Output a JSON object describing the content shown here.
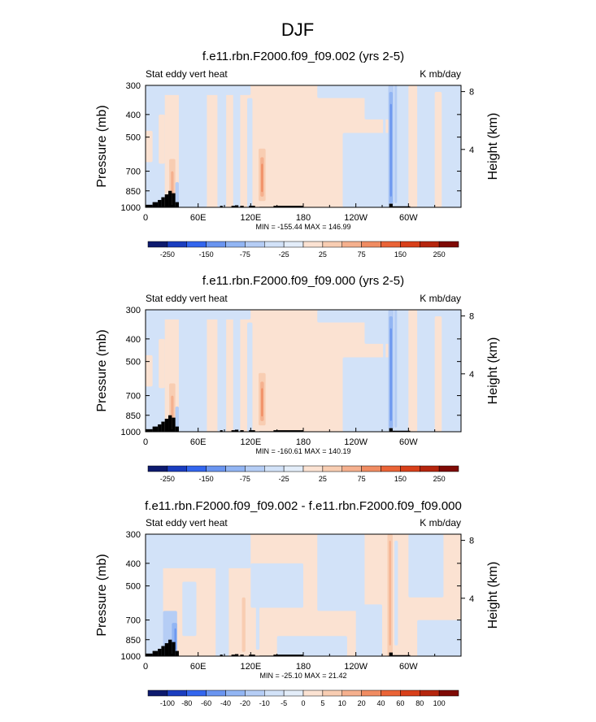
{
  "figure_title": "DJF",
  "chart_data": [
    {
      "type": "heatmap",
      "title": "f.e11.rbn.F2000.f09_f09.002 (yrs 2-5)",
      "left_label": "Stat eddy vert heat",
      "right_label": "K mb/day",
      "ylabel": "Pressure (mb)",
      "ylabel_right": "Height (km)",
      "yticks": [
        "300",
        "400",
        "500",
        "700",
        "850",
        "1000"
      ],
      "yticks_right": [
        "8",
        "4"
      ],
      "xticks": [
        "0",
        "60E",
        "120E",
        "180",
        "120W",
        "60W"
      ],
      "stats": "MIN = -155.44   MAX = 146.99",
      "colorbar_labels": [
        "-250",
        "-150",
        "-75",
        "-25",
        "25",
        "75",
        "150",
        "250"
      ],
      "colorbar_colors": [
        "#0d1a6e",
        "#1a3dbf",
        "#3366ee",
        "#6a95f0",
        "#92b5f3",
        "#b5cdf5",
        "#d2e2f8",
        "#e3edf9",
        "#fbe2d2",
        "#f8cdb2",
        "#f5b08e",
        "#f08c62",
        "#ea6437",
        "#d8401a",
        "#b5250d",
        "#7f0a05"
      ]
    },
    {
      "type": "heatmap",
      "title": "f.e11.rbn.F2000.f09_f09.000 (yrs 2-5)",
      "left_label": "Stat eddy vert heat",
      "right_label": "K mb/day",
      "ylabel": "Pressure (mb)",
      "ylabel_right": "Height (km)",
      "yticks": [
        "300",
        "400",
        "500",
        "700",
        "850",
        "1000"
      ],
      "yticks_right": [
        "8",
        "4"
      ],
      "xticks": [
        "0",
        "60E",
        "120E",
        "180",
        "120W",
        "60W"
      ],
      "stats": "MIN = -160.61   MAX = 140.19",
      "colorbar_labels": [
        "-250",
        "-150",
        "-75",
        "-25",
        "25",
        "75",
        "150",
        "250"
      ],
      "colorbar_colors": [
        "#0d1a6e",
        "#1a3dbf",
        "#3366ee",
        "#6a95f0",
        "#92b5f3",
        "#b5cdf5",
        "#d2e2f8",
        "#e3edf9",
        "#fbe2d2",
        "#f8cdb2",
        "#f5b08e",
        "#f08c62",
        "#ea6437",
        "#d8401a",
        "#b5250d",
        "#7f0a05"
      ]
    },
    {
      "type": "heatmap",
      "title": "f.e11.rbn.F2000.f09_f09.002 - f.e11.rbn.F2000.f09_f09.000",
      "left_label": "Stat eddy vert heat",
      "right_label": "K mb/day",
      "ylabel": "Pressure (mb)",
      "ylabel_right": "Height (km)",
      "yticks": [
        "300",
        "400",
        "500",
        "700",
        "850",
        "1000"
      ],
      "yticks_right": [
        "8",
        "4"
      ],
      "xticks": [
        "0",
        "60E",
        "120E",
        "180",
        "120W",
        "60W"
      ],
      "stats": "MIN = -25.10   MAX = 21.42",
      "colorbar_labels": [
        "-100",
        "-80",
        "-60",
        "-40",
        "-20",
        "-10",
        "-5",
        "0",
        "5",
        "10",
        "20",
        "40",
        "60",
        "80",
        "100"
      ],
      "colorbar_colors": [
        "#0d1a6e",
        "#1a3dbf",
        "#3366ee",
        "#6a95f0",
        "#92b5f3",
        "#b5cdf5",
        "#d2e2f8",
        "#e3edf9",
        "#fbe2d2",
        "#f8cdb2",
        "#f5b08e",
        "#f08c62",
        "#ea6437",
        "#d8401a",
        "#b5250d",
        "#7f0a05"
      ]
    }
  ]
}
